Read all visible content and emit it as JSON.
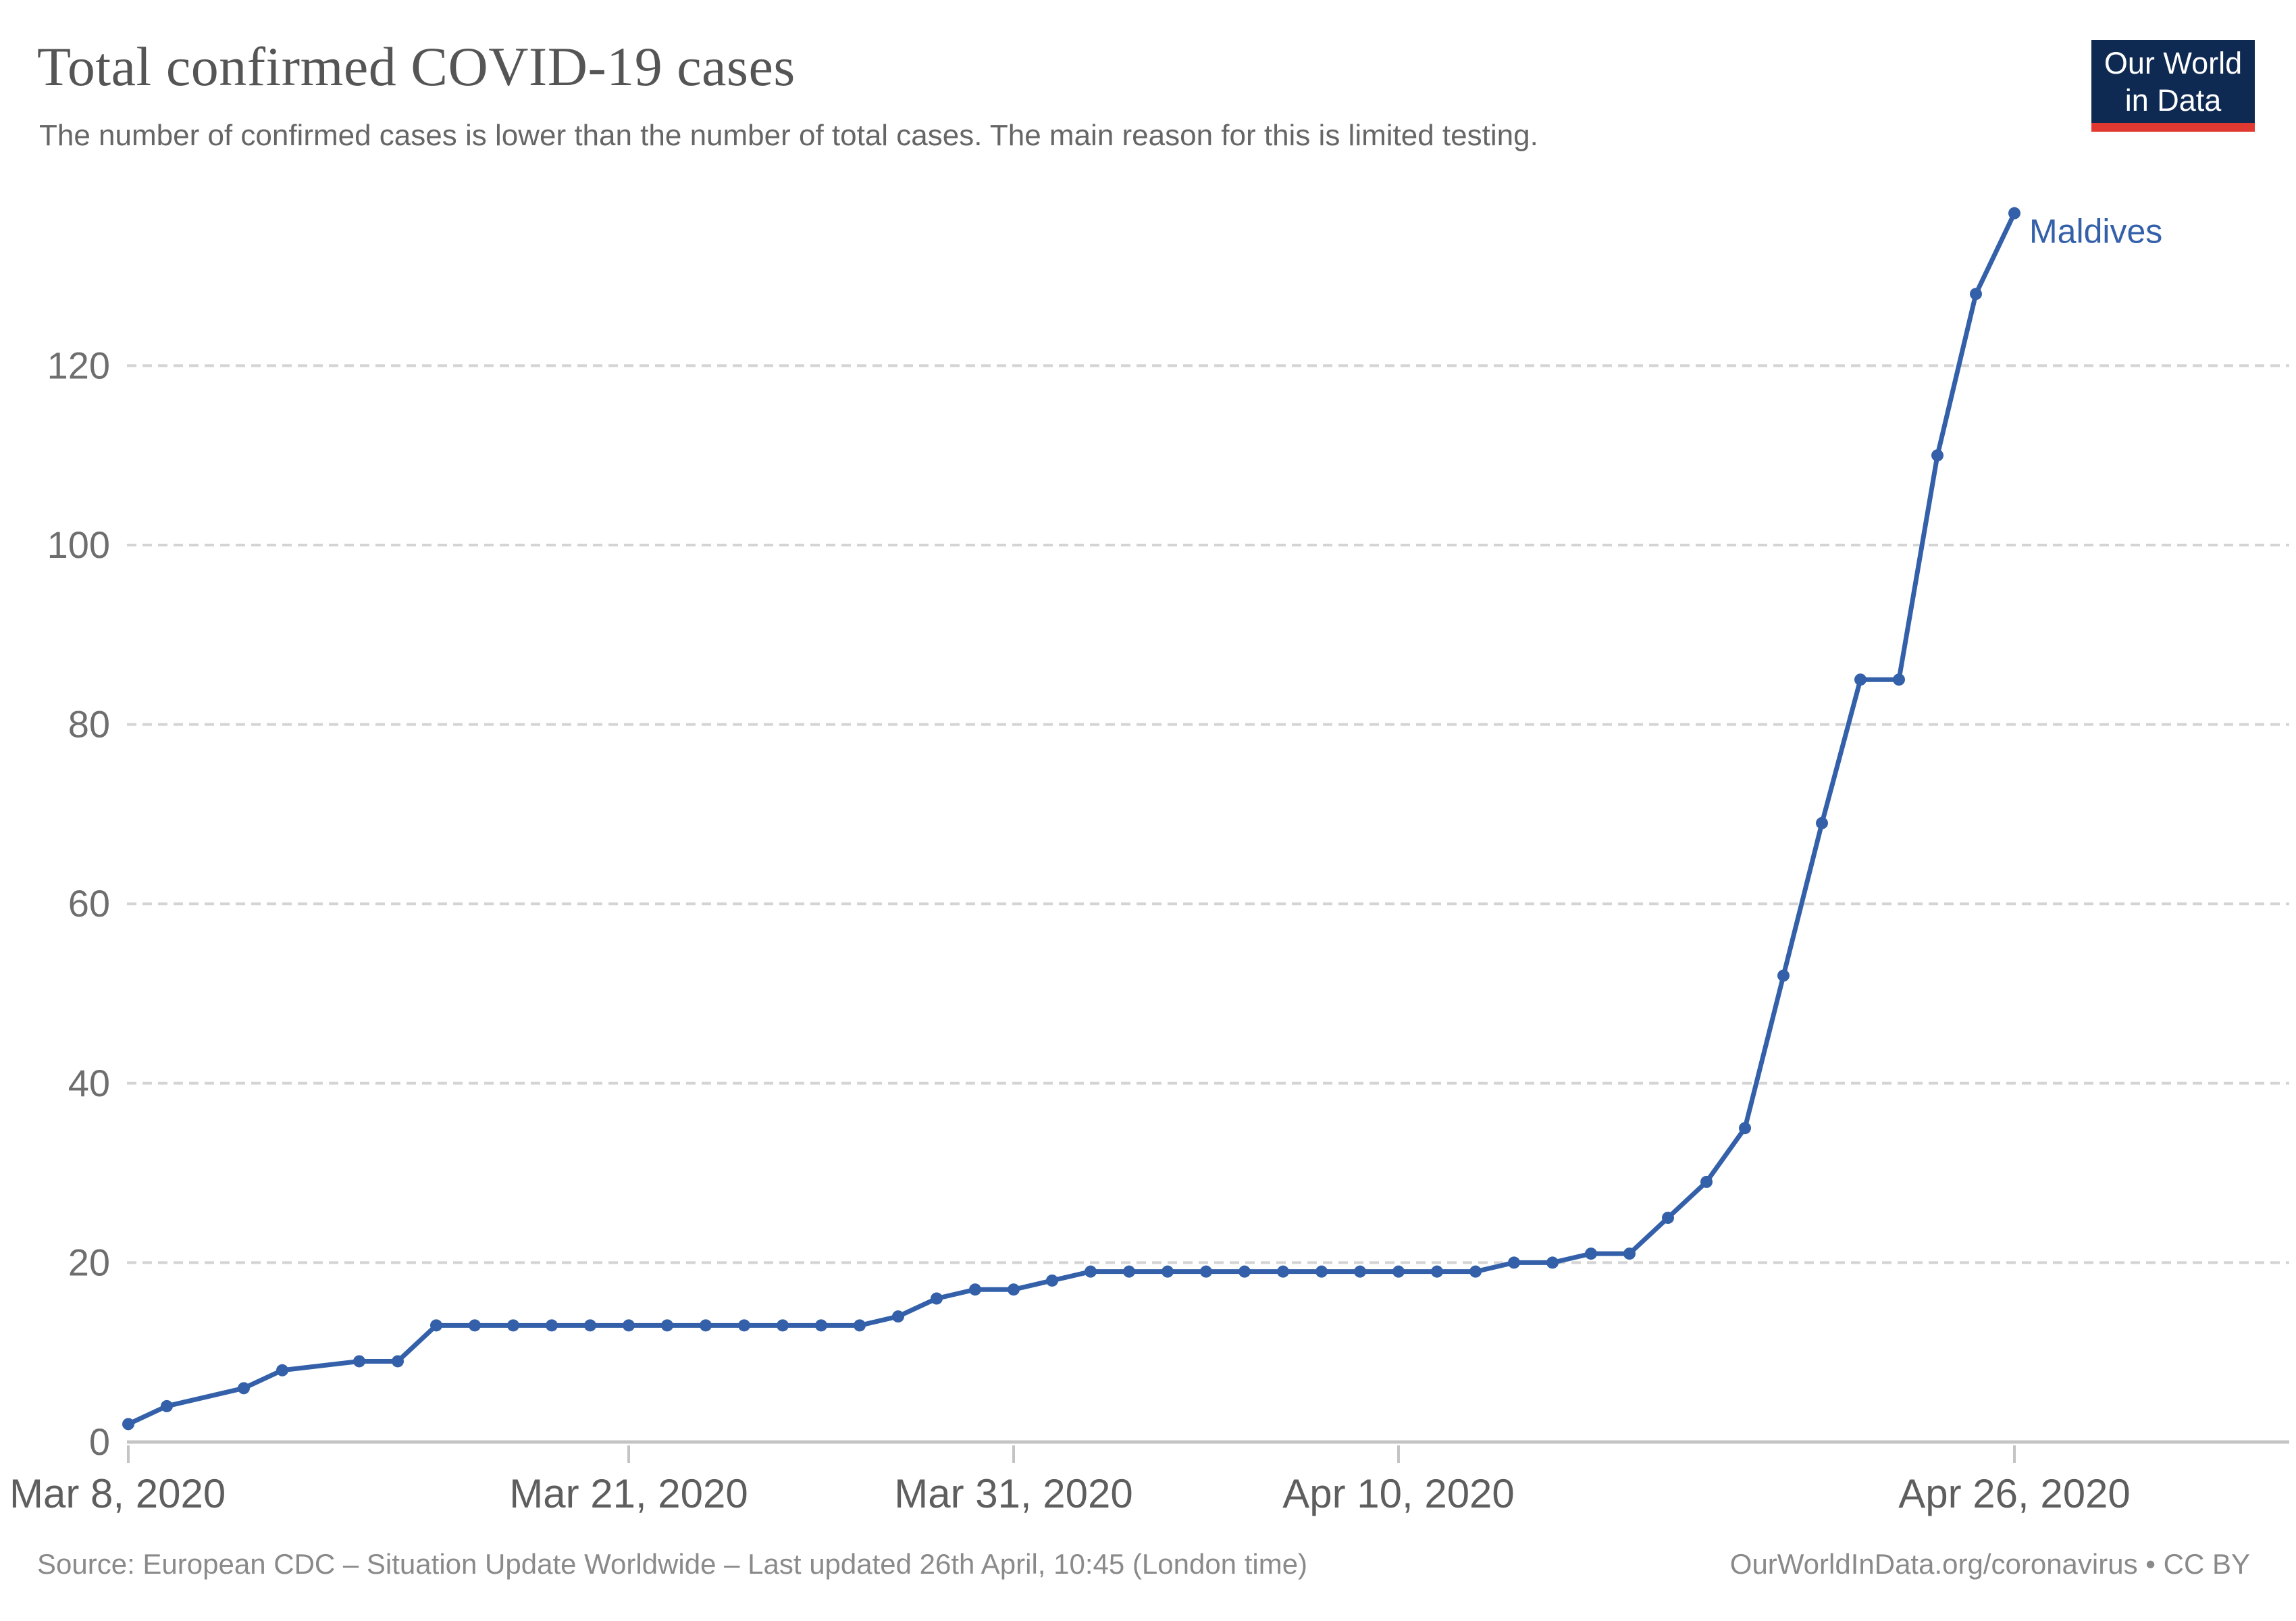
{
  "header": {
    "title": "Total confirmed COVID-19 cases",
    "subtitle": "The number of confirmed cases is lower than the number of total cases. The main reason for this is limited testing."
  },
  "logo": {
    "line1": "Our World",
    "line2": "in Data",
    "bg_color": "#0f2a52",
    "bar_color": "#e03931",
    "text_color": "#ffffff"
  },
  "footer": {
    "source": "Source: European CDC – Situation Update Worldwide – Last updated 26th April, 10:45 (London time)",
    "link": "OurWorldInData.org/coronavirus • CC BY"
  },
  "chart_data": {
    "type": "line",
    "title": "Total confirmed COVID-19 cases",
    "xlabel": "",
    "ylabel": "",
    "x_range": [
      "2020-03-08",
      "2020-04-26"
    ],
    "ylim": [
      0,
      140
    ],
    "grid": "dashed-horizontal",
    "legend_position": "end-of-line-label",
    "yticks": [
      0,
      20,
      40,
      60,
      80,
      100,
      120
    ],
    "xticks": [
      {
        "label": "Mar 8, 2020",
        "date": "2020-03-08",
        "align": "left"
      },
      {
        "label": "Mar 21, 2020",
        "date": "2020-03-21",
        "align": "center"
      },
      {
        "label": "Mar 31, 2020",
        "date": "2020-03-31",
        "align": "center"
      },
      {
        "label": "Apr 10, 2020",
        "date": "2020-04-10",
        "align": "center"
      },
      {
        "label": "Apr 26, 2020",
        "date": "2020-04-26",
        "align": "center"
      }
    ],
    "series": [
      {
        "name": "Maldives",
        "color": "#3360a9",
        "points": [
          {
            "date": "2020-03-08",
            "value": 2
          },
          {
            "date": "2020-03-09",
            "value": 4
          },
          {
            "date": "2020-03-11",
            "value": 6
          },
          {
            "date": "2020-03-12",
            "value": 8
          },
          {
            "date": "2020-03-14",
            "value": 9
          },
          {
            "date": "2020-03-15",
            "value": 9
          },
          {
            "date": "2020-03-16",
            "value": 13
          },
          {
            "date": "2020-03-17",
            "value": 13
          },
          {
            "date": "2020-03-18",
            "value": 13
          },
          {
            "date": "2020-03-19",
            "value": 13
          },
          {
            "date": "2020-03-20",
            "value": 13
          },
          {
            "date": "2020-03-21",
            "value": 13
          },
          {
            "date": "2020-03-22",
            "value": 13
          },
          {
            "date": "2020-03-23",
            "value": 13
          },
          {
            "date": "2020-03-24",
            "value": 13
          },
          {
            "date": "2020-03-25",
            "value": 13
          },
          {
            "date": "2020-03-26",
            "value": 13
          },
          {
            "date": "2020-03-27",
            "value": 13
          },
          {
            "date": "2020-03-28",
            "value": 14
          },
          {
            "date": "2020-03-29",
            "value": 16
          },
          {
            "date": "2020-03-30",
            "value": 17
          },
          {
            "date": "2020-03-31",
            "value": 17
          },
          {
            "date": "2020-04-01",
            "value": 18
          },
          {
            "date": "2020-04-02",
            "value": 19
          },
          {
            "date": "2020-04-03",
            "value": 19
          },
          {
            "date": "2020-04-04",
            "value": 19
          },
          {
            "date": "2020-04-05",
            "value": 19
          },
          {
            "date": "2020-04-06",
            "value": 19
          },
          {
            "date": "2020-04-07",
            "value": 19
          },
          {
            "date": "2020-04-08",
            "value": 19
          },
          {
            "date": "2020-04-09",
            "value": 19
          },
          {
            "date": "2020-04-10",
            "value": 19
          },
          {
            "date": "2020-04-11",
            "value": 19
          },
          {
            "date": "2020-04-12",
            "value": 19
          },
          {
            "date": "2020-04-13",
            "value": 20
          },
          {
            "date": "2020-04-14",
            "value": 20
          },
          {
            "date": "2020-04-15",
            "value": 21
          },
          {
            "date": "2020-04-16",
            "value": 21
          },
          {
            "date": "2020-04-17",
            "value": 25
          },
          {
            "date": "2020-04-18",
            "value": 29
          },
          {
            "date": "2020-04-19",
            "value": 35
          },
          {
            "date": "2020-04-20",
            "value": 52
          },
          {
            "date": "2020-04-21",
            "value": 69
          },
          {
            "date": "2020-04-22",
            "value": 85
          },
          {
            "date": "2020-04-23",
            "value": 85
          },
          {
            "date": "2020-04-24",
            "value": 110
          },
          {
            "date": "2020-04-25",
            "value": 128
          },
          {
            "date": "2020-04-26",
            "value": 137
          }
        ]
      }
    ]
  }
}
